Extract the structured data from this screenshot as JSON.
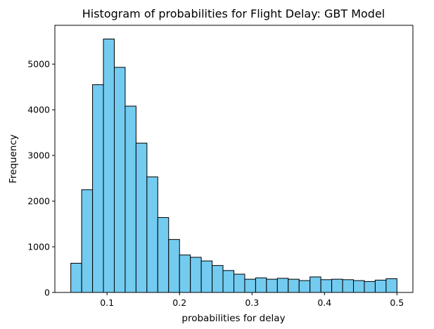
{
  "chart_data": {
    "type": "bar",
    "title": "Histogram of probabilities for Flight Delay: GBT Model",
    "xlabel": "probabilities for delay",
    "ylabel": "Frequency",
    "xlim": [
      0.028,
      0.522
    ],
    "ylim": [
      0,
      5850
    ],
    "bar_color": "#73CBF0",
    "edge_color": "#000000",
    "bin_start": 0.05,
    "bin_width": 0.015,
    "values": [
      640,
      2250,
      4550,
      5550,
      4930,
      4080,
      3270,
      2530,
      1640,
      1160,
      820,
      770,
      690,
      590,
      480,
      400,
      290,
      320,
      290,
      310,
      290,
      260,
      340,
      280,
      290,
      280,
      260,
      240,
      270,
      300
    ],
    "x_ticks": [
      {
        "value": 0.1,
        "label": "0.1"
      },
      {
        "value": 0.2,
        "label": "0.2"
      },
      {
        "value": 0.3,
        "label": "0.3"
      },
      {
        "value": 0.4,
        "label": "0.4"
      },
      {
        "value": 0.5,
        "label": "0.5"
      }
    ],
    "y_ticks": [
      {
        "value": 0,
        "label": "0"
      },
      {
        "value": 1000,
        "label": "1000"
      },
      {
        "value": 2000,
        "label": "2000"
      },
      {
        "value": 3000,
        "label": "3000"
      },
      {
        "value": 4000,
        "label": "4000"
      },
      {
        "value": 5000,
        "label": "5000"
      }
    ],
    "grid": false,
    "legend": "none"
  }
}
